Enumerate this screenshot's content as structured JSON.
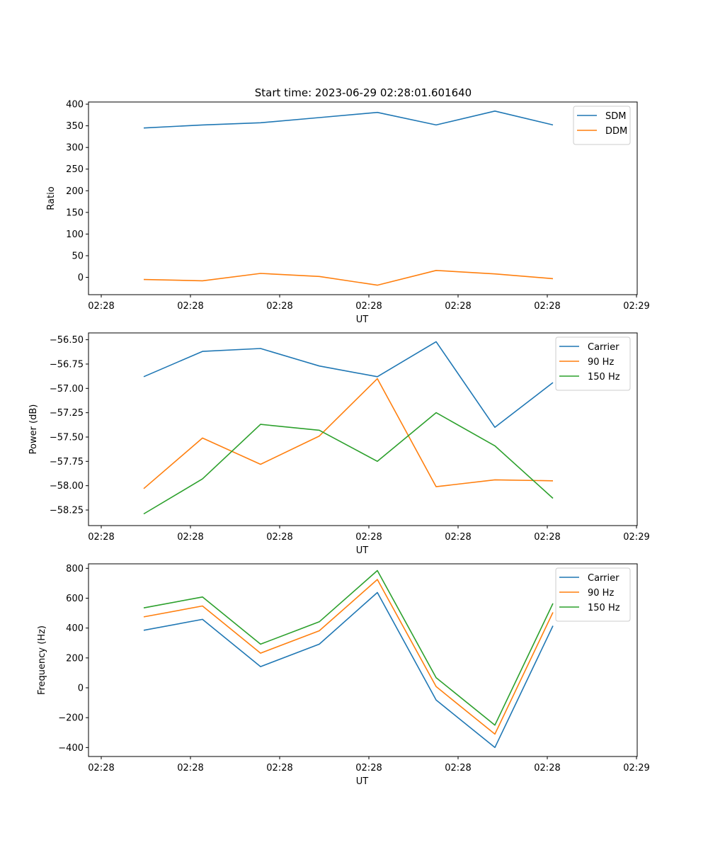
{
  "figure": {
    "title": "Start time: 2023-06-29 02:28:01.601640"
  },
  "chart_data": [
    {
      "type": "line",
      "x": [
        0,
        1,
        2,
        3,
        4,
        5,
        6,
        7
      ],
      "xlabel": "UT",
      "ylabel": "Ratio",
      "ylim": [
        -40,
        405
      ],
      "yticks": [
        0,
        50,
        100,
        150,
        200,
        250,
        300,
        350,
        400
      ],
      "ytick_labels": [
        "0",
        "50",
        "100",
        "150",
        "200",
        "250",
        "300",
        "350",
        "400"
      ],
      "xtick_labels": [
        "02:28",
        "02:28",
        "02:28",
        "02:28",
        "02:28",
        "02:28",
        "02:28"
      ],
      "xtick_last_label": "02:29",
      "legend": "top-right",
      "grid": false,
      "series": [
        {
          "name": "SDM",
          "color": "#1f77b4",
          "values": [
            345,
            352,
            357,
            369,
            381,
            352,
            384,
            352
          ]
        },
        {
          "name": "DDM",
          "color": "#ff7f0e",
          "values": [
            -5,
            -8,
            9,
            2,
            -18,
            16,
            8,
            -3
          ]
        }
      ]
    },
    {
      "type": "line",
      "x": [
        0,
        1,
        2,
        3,
        4,
        5,
        6,
        7
      ],
      "xlabel": "UT",
      "ylabel": "Power (dB)",
      "ylim": [
        -58.41,
        -56.43
      ],
      "yticks": [
        -58.25,
        -58.0,
        -57.75,
        -57.5,
        -57.25,
        -57.0,
        -56.75,
        -56.5
      ],
      "ytick_labels": [
        "−58.25",
        "−58.00",
        "−57.75",
        "−57.50",
        "−57.25",
        "−57.00",
        "−56.75",
        "−56.50"
      ],
      "xtick_labels": [
        "02:28",
        "02:28",
        "02:28",
        "02:28",
        "02:28",
        "02:28",
        "02:28"
      ],
      "xtick_last_label": "02:29",
      "legend": "top-right",
      "grid": false,
      "series": [
        {
          "name": "Carrier",
          "color": "#1f77b4",
          "values": [
            -56.88,
            -56.62,
            -56.59,
            -56.77,
            -56.88,
            -56.52,
            -57.4,
            -56.94
          ]
        },
        {
          "name": "90 Hz",
          "color": "#ff7f0e",
          "values": [
            -58.03,
            -57.51,
            -57.78,
            -57.49,
            -56.9,
            -58.01,
            -57.94,
            -57.95
          ]
        },
        {
          "name": "150 Hz",
          "color": "#2ca02c",
          "values": [
            -58.29,
            -57.93,
            -57.37,
            -57.43,
            -57.75,
            -57.25,
            -57.59,
            -58.13
          ]
        }
      ]
    },
    {
      "type": "line",
      "x": [
        0,
        1,
        2,
        3,
        4,
        5,
        6,
        7
      ],
      "xlabel": "UT",
      "ylabel": "Frequency (Hz)",
      "ylim": [
        -460,
        830
      ],
      "yticks": [
        -400,
        -200,
        0,
        200,
        400,
        600,
        800
      ],
      "ytick_labels": [
        "−400",
        "−200",
        "0",
        "200",
        "400",
        "600",
        "800"
      ],
      "xtick_labels": [
        "02:28",
        "02:28",
        "02:28",
        "02:28",
        "02:28",
        "02:28",
        "02:28"
      ],
      "xtick_last_label": "02:29",
      "legend": "top-right",
      "grid": false,
      "series": [
        {
          "name": "Carrier",
          "color": "#1f77b4",
          "values": [
            385,
            458,
            142,
            292,
            638,
            -82,
            -400,
            415
          ]
        },
        {
          "name": "90 Hz",
          "color": "#ff7f0e",
          "values": [
            475,
            548,
            232,
            382,
            725,
            8,
            -310,
            505
          ]
        },
        {
          "name": "150 Hz",
          "color": "#2ca02c",
          "values": [
            535,
            608,
            292,
            442,
            785,
            68,
            -250,
            565
          ]
        }
      ]
    }
  ]
}
